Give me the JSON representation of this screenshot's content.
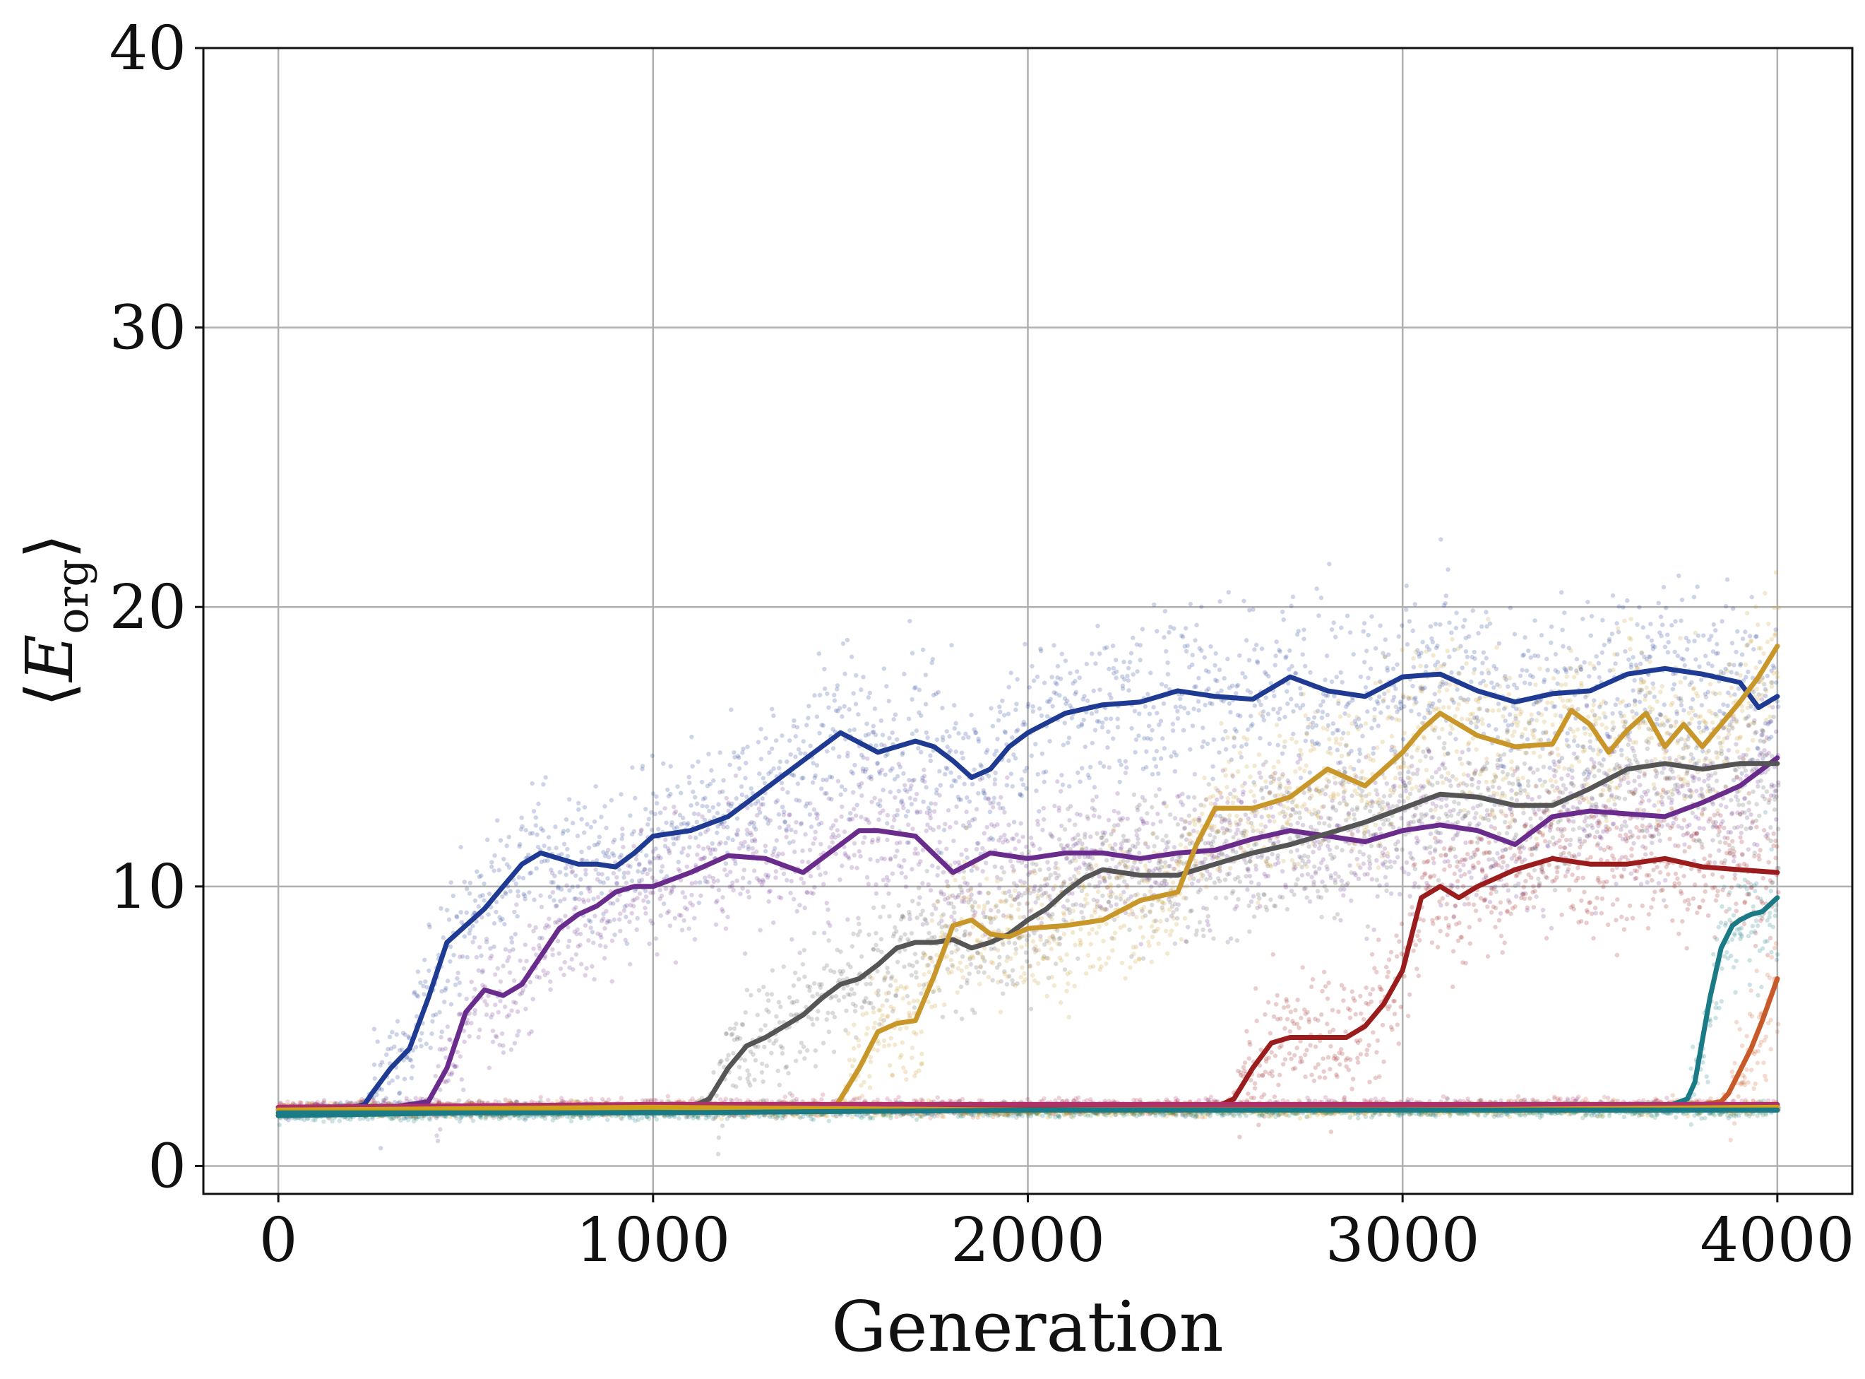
{
  "chart_data": {
    "type": "line",
    "title": "",
    "xlabel": "Generation",
    "ylabel": {
      "main": "E",
      "sub": "org"
    },
    "xlim": [
      -200,
      4200
    ],
    "ylim": [
      -1,
      40
    ],
    "xticks": [
      0,
      1000,
      2000,
      3000,
      4000
    ],
    "xtick_labels": [
      "0",
      "1000",
      "2000",
      "3000",
      "4000"
    ],
    "yticks": [
      0,
      10,
      20,
      30,
      40
    ],
    "ytick_labels": [
      "0",
      "10",
      "20",
      "30",
      "40"
    ],
    "grid": true,
    "legend": "none",
    "scatter_underlay": true,
    "series": [
      {
        "color": "#1f3a93",
        "x": [
          0,
          50,
          100,
          200,
          230,
          250,
          300,
          350,
          400,
          450,
          500,
          550,
          600,
          650,
          700,
          750,
          800,
          850,
          900,
          950,
          1000,
          1100,
          1200,
          1300,
          1400,
          1500,
          1600,
          1700,
          1750,
          1800,
          1850,
          1900,
          1950,
          2000,
          2100,
          2200,
          2300,
          2400,
          2500,
          2600,
          2700,
          2800,
          2900,
          3000,
          3100,
          3200,
          3300,
          3400,
          3500,
          3600,
          3700,
          3800,
          3900,
          3950,
          4000
        ],
        "y": [
          1.8,
          2.0,
          2.1,
          2.1,
          2.2,
          2.6,
          3.5,
          4.2,
          6.0,
          8.0,
          8.6,
          9.2,
          10.0,
          10.8,
          11.2,
          11.0,
          10.8,
          10.8,
          10.7,
          11.2,
          11.8,
          12.0,
          12.5,
          13.5,
          14.5,
          15.5,
          14.8,
          15.2,
          15.0,
          14.5,
          13.9,
          14.2,
          15.0,
          15.5,
          16.2,
          16.5,
          16.6,
          17.0,
          16.8,
          16.7,
          17.5,
          17.0,
          16.8,
          17.5,
          17.6,
          17.0,
          16.6,
          16.9,
          17.0,
          17.6,
          17.8,
          17.6,
          17.3,
          16.4,
          16.8
        ]
      },
      {
        "color": "#6a2c8c",
        "x": [
          0,
          100,
          200,
          300,
          350,
          400,
          450,
          500,
          550,
          600,
          650,
          700,
          750,
          800,
          850,
          900,
          950,
          1000,
          1100,
          1200,
          1300,
          1400,
          1450,
          1500,
          1550,
          1600,
          1700,
          1800,
          1900,
          2000,
          2100,
          2200,
          2300,
          2400,
          2500,
          2600,
          2700,
          2800,
          2900,
          3000,
          3100,
          3200,
          3300,
          3400,
          3500,
          3600,
          3700,
          3800,
          3900,
          4000
        ],
        "y": [
          1.8,
          2.0,
          2.1,
          2.1,
          2.2,
          2.3,
          3.5,
          5.5,
          6.3,
          6.1,
          6.5,
          7.5,
          8.5,
          9.0,
          9.3,
          9.8,
          10.0,
          10.0,
          10.5,
          11.1,
          11.0,
          10.5,
          11.0,
          11.5,
          12.0,
          12.0,
          11.8,
          10.5,
          11.2,
          11.0,
          11.2,
          11.2,
          11.0,
          11.2,
          11.3,
          11.7,
          12.0,
          11.8,
          11.6,
          12.0,
          12.2,
          12.0,
          11.5,
          12.5,
          12.7,
          12.6,
          12.5,
          13.0,
          13.6,
          14.6
        ]
      },
      {
        "color": "#555555",
        "x": [
          0,
          500,
          1000,
          1100,
          1150,
          1200,
          1250,
          1300,
          1350,
          1400,
          1450,
          1500,
          1550,
          1600,
          1650,
          1700,
          1750,
          1800,
          1850,
          1900,
          1950,
          2000,
          2050,
          2100,
          2150,
          2200,
          2300,
          2400,
          2500,
          2600,
          2700,
          2800,
          2900,
          3000,
          3100,
          3200,
          3300,
          3400,
          3500,
          3600,
          3700,
          3800,
          3900,
          4000
        ],
        "y": [
          2.0,
          2.1,
          2.1,
          2.1,
          2.4,
          3.5,
          4.3,
          4.6,
          5.0,
          5.4,
          6.0,
          6.5,
          6.7,
          7.2,
          7.8,
          8.0,
          8.0,
          8.1,
          7.8,
          8.0,
          8.3,
          8.8,
          9.2,
          9.8,
          10.3,
          10.6,
          10.4,
          10.4,
          10.8,
          11.2,
          11.5,
          11.9,
          12.3,
          12.8,
          13.3,
          13.2,
          12.9,
          12.9,
          13.5,
          14.2,
          14.4,
          14.2,
          14.4,
          14.4
        ]
      },
      {
        "color": "#c9962a",
        "x": [
          0,
          500,
          1000,
          1400,
          1480,
          1500,
          1550,
          1600,
          1650,
          1700,
          1750,
          1800,
          1850,
          1900,
          1950,
          2000,
          2100,
          2200,
          2300,
          2400,
          2450,
          2500,
          2600,
          2700,
          2800,
          2900,
          3000,
          3050,
          3100,
          3200,
          3300,
          3400,
          3450,
          3500,
          3550,
          3600,
          3650,
          3700,
          3750,
          3800,
          3850,
          3900,
          3950,
          4000
        ],
        "y": [
          2.0,
          2.0,
          2.0,
          2.0,
          2.0,
          2.4,
          3.5,
          4.8,
          5.1,
          5.2,
          6.8,
          8.6,
          8.8,
          8.3,
          8.2,
          8.5,
          8.6,
          8.8,
          9.5,
          9.8,
          11.5,
          12.8,
          12.8,
          13.2,
          14.2,
          13.6,
          14.8,
          15.6,
          16.2,
          15.4,
          15.0,
          15.1,
          16.3,
          15.8,
          14.8,
          15.6,
          16.2,
          15.0,
          15.8,
          15.0,
          15.8,
          16.6,
          17.5,
          18.6
        ]
      },
      {
        "color": "#9b1c1c",
        "x": [
          0,
          1000,
          2000,
          2500,
          2550,
          2600,
          2650,
          2700,
          2750,
          2800,
          2850,
          2900,
          2950,
          3000,
          3050,
          3100,
          3150,
          3200,
          3300,
          3400,
          3500,
          3600,
          3700,
          3800,
          3900,
          4000
        ],
        "y": [
          2.1,
          2.1,
          2.1,
          2.1,
          2.4,
          3.5,
          4.4,
          4.6,
          4.6,
          4.6,
          4.6,
          5.0,
          5.8,
          7.0,
          9.6,
          10.0,
          9.6,
          10.0,
          10.6,
          11.0,
          10.8,
          10.8,
          11.0,
          10.7,
          10.6,
          10.5
        ]
      },
      {
        "color": "#1a7a85",
        "x": [
          0,
          1000,
          2000,
          3000,
          3700,
          3760,
          3780,
          3800,
          3820,
          3850,
          3880,
          3900,
          3930,
          3960,
          4000
        ],
        "y": [
          1.8,
          2.0,
          2.0,
          2.1,
          2.1,
          2.4,
          3.0,
          4.5,
          6.0,
          7.8,
          8.6,
          8.8,
          9.0,
          9.1,
          9.6
        ]
      },
      {
        "color": "#c85a2a",
        "x": [
          0,
          1000,
          2000,
          3000,
          3800,
          3850,
          3870,
          3900,
          3930,
          3960,
          4000
        ],
        "y": [
          2.0,
          2.0,
          2.0,
          2.1,
          2.2,
          2.3,
          2.6,
          3.4,
          4.2,
          5.2,
          6.7
        ]
      },
      {
        "color": "#b0306a",
        "x": [
          0,
          1000,
          2000,
          3000,
          4000
        ],
        "y": [
          2.1,
          2.2,
          2.2,
          2.2,
          2.2
        ]
      },
      {
        "color": "#2e8b57",
        "x": [
          0,
          1000,
          2000,
          3000,
          4000
        ],
        "y": [
          1.9,
          2.0,
          2.0,
          2.0,
          2.0
        ]
      },
      {
        "color": "#d4a017",
        "x": [
          0,
          1000,
          2000,
          3000,
          4000
        ],
        "y": [
          2.0,
          2.1,
          2.0,
          2.0,
          2.1
        ]
      },
      {
        "color": "#1a7a85",
        "x": [
          0,
          1000,
          2000,
          3000,
          4000
        ],
        "y": [
          1.9,
          1.9,
          2.0,
          2.0,
          2.0
        ]
      }
    ]
  }
}
